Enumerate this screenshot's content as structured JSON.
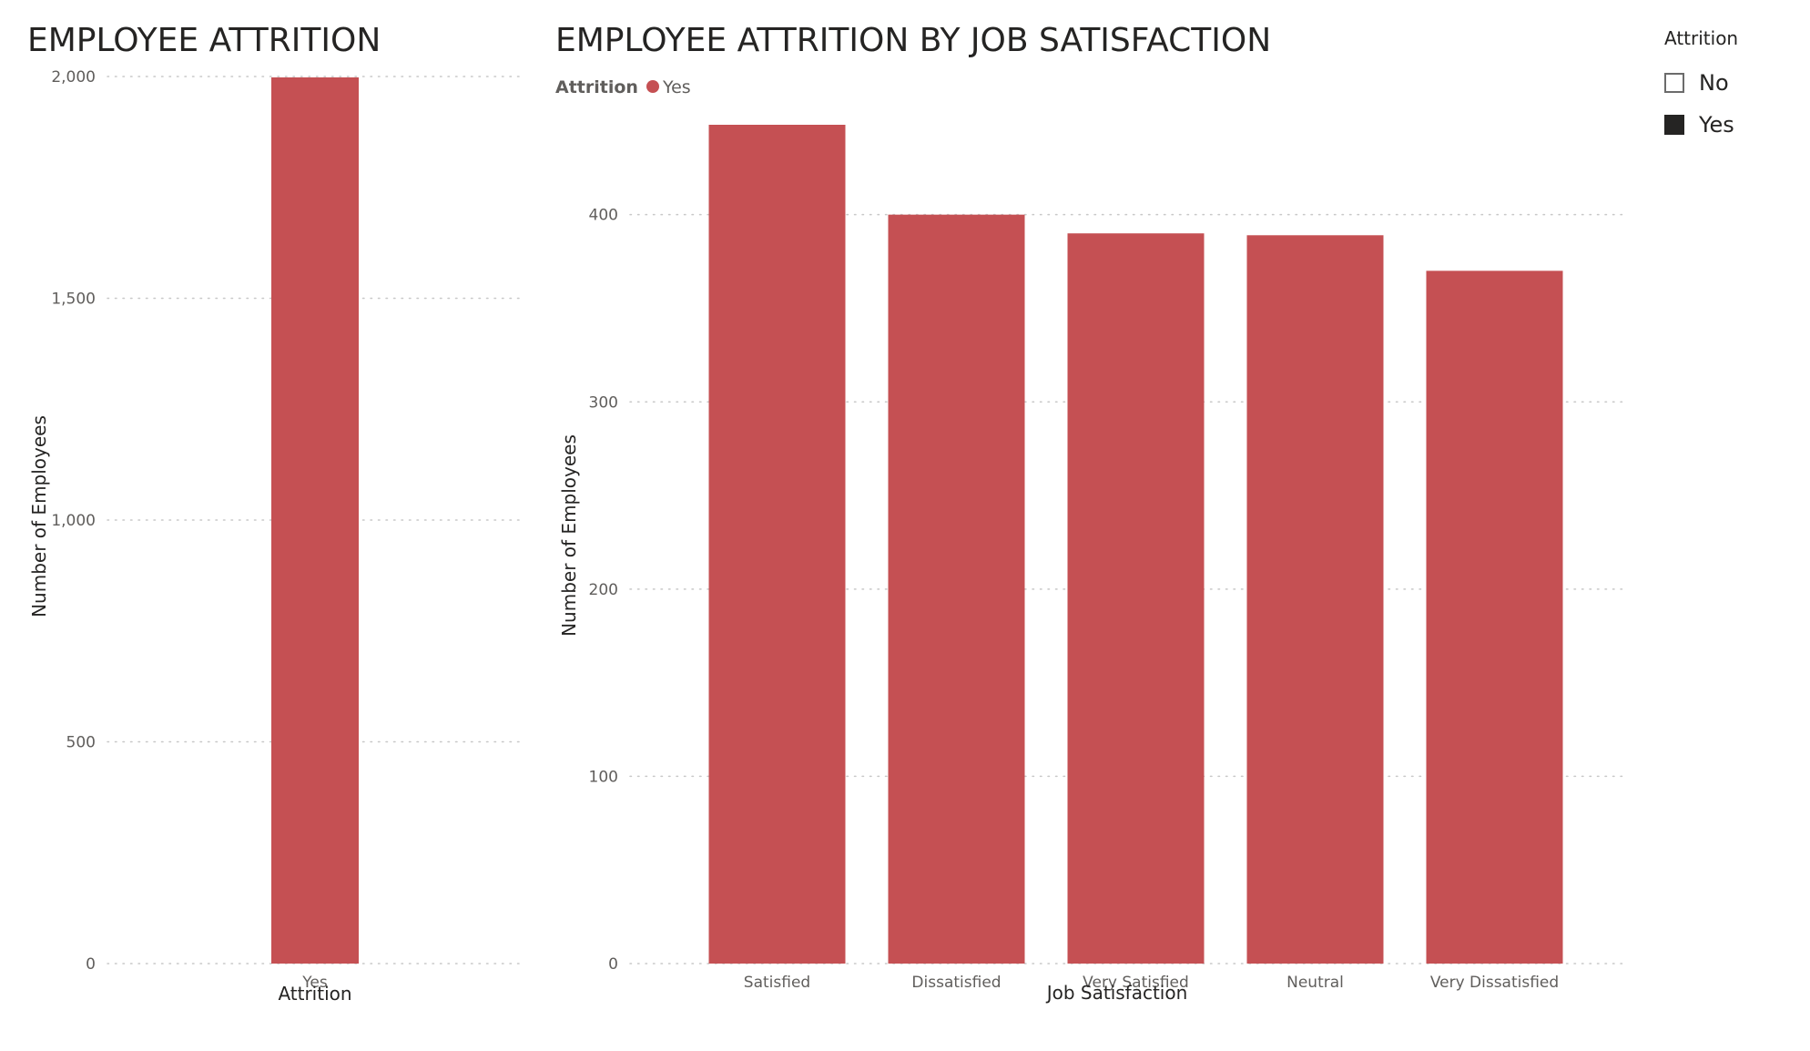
{
  "colors": {
    "bar": "#C55053",
    "grid": "#c8c8c8",
    "text": "#252423",
    "tick": "#605e5c"
  },
  "slicer": {
    "title": "Attrition",
    "items": [
      {
        "label": "No",
        "checked": false
      },
      {
        "label": "Yes",
        "checked": true
      }
    ]
  },
  "chart_data": [
    {
      "type": "bar",
      "title": "EMPLOYEE ATTRITION",
      "xlabel": "Attrition",
      "ylabel": "Number of Employees",
      "categories": [
        "Yes"
      ],
      "values": [
        1998
      ],
      "ylim": [
        0,
        2000
      ],
      "yticks": [
        "0",
        "500",
        "1,000",
        "1,500",
        "2,000"
      ],
      "ytick_values": [
        0,
        500,
        1000,
        1500,
        2000
      ],
      "grid": true
    },
    {
      "type": "bar",
      "title": "EMPLOYEE ATTRITION BY JOB SATISFACTION",
      "xlabel": "Job Satisfaction",
      "ylabel": "Number of Employees",
      "legend": {
        "title": "Attrition",
        "entries": [
          "Yes"
        ],
        "placement": "top-left"
      },
      "categories": [
        "Satisfied",
        "Dissatisfied",
        "Very Satisfied",
        "Neutral",
        "Very Dissatisfied"
      ],
      "series": [
        {
          "name": "Yes",
          "values": [
            448,
            400,
            390,
            389,
            370
          ]
        }
      ],
      "ylim": [
        0,
        448
      ],
      "yticks": [
        "0",
        "100",
        "200",
        "300",
        "400"
      ],
      "ytick_values": [
        0,
        100,
        200,
        300,
        400
      ],
      "grid": true
    }
  ]
}
